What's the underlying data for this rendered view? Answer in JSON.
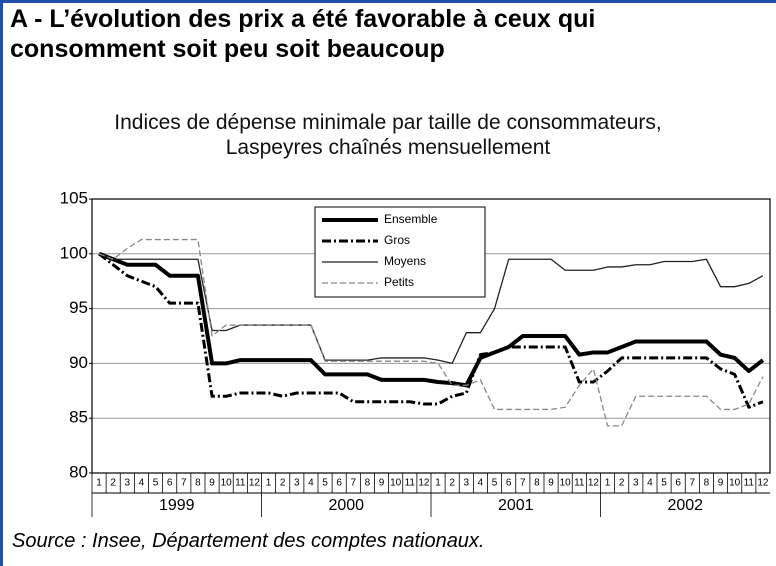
{
  "chart_data": {
    "type": "line",
    "title": [
      "A - L’évolution des prix a été favorable à ceux qui",
      "consomment soit peu soit beaucoup"
    ],
    "subtitle": [
      "Indices de dépense minimale par taille de consommateurs,",
      "Laspeyres chaînés mensuellement"
    ],
    "source": "Source : Insee, Département des comptes nationaux.",
    "categories": [
      "1",
      "2",
      "3",
      "4",
      "5",
      "6",
      "7",
      "8",
      "9",
      "10",
      "11",
      "12",
      "1",
      "2",
      "3",
      "4",
      "5",
      "6",
      "7",
      "8",
      "9",
      "10",
      "11",
      "12",
      "1",
      "2",
      "3",
      "4",
      "5",
      "6",
      "7",
      "8",
      "9",
      "10",
      "11",
      "12",
      "1",
      "2",
      "3",
      "4",
      "5",
      "6",
      "7",
      "8",
      "9",
      "10",
      "11",
      "12"
    ],
    "years": [
      "1999",
      "2000",
      "2001",
      "2002"
    ],
    "ylim": [
      80,
      105
    ],
    "yticks": [
      80,
      85,
      90,
      95,
      100,
      105
    ],
    "grid": true,
    "series": [
      {
        "name": "Ensemble",
        "color": "#000000",
        "width": 4,
        "dash": "none",
        "values": [
          100,
          99.5,
          99,
          99,
          99,
          98,
          98,
          98,
          90,
          90,
          90.3,
          90.3,
          90.3,
          90.3,
          90.3,
          90.3,
          89,
          89,
          89,
          89,
          88.5,
          88.5,
          88.5,
          88.5,
          88.3,
          88.2,
          88,
          90.5,
          91,
          91.5,
          92.5,
          92.5,
          92.5,
          92.5,
          90.8,
          91,
          91,
          91.5,
          92,
          92,
          92,
          92,
          92,
          92,
          90.8,
          90.5,
          89.3,
          90.3
        ]
      },
      {
        "name": "Gros",
        "color": "#000000",
        "width": 3,
        "dash": "9 3 2 3",
        "values": [
          100,
          99,
          98,
          97.5,
          97,
          95.5,
          95.5,
          95.5,
          87,
          87,
          87.3,
          87.3,
          87.3,
          87,
          87.3,
          87.3,
          87.3,
          87.3,
          86.5,
          86.5,
          86.5,
          86.5,
          86.5,
          86.3,
          86.3,
          87,
          87.3,
          90.8,
          91,
          91.5,
          91.5,
          91.5,
          91.5,
          91.5,
          88.3,
          88.3,
          89.3,
          90.5,
          90.5,
          90.5,
          90.5,
          90.5,
          90.5,
          90.5,
          89.5,
          89,
          86,
          86.5
        ]
      },
      {
        "name": "Moyens",
        "color": "#222222",
        "width": 1.3,
        "dash": "none",
        "values": [
          100,
          99.5,
          99.5,
          99.5,
          99.5,
          99.5,
          99.5,
          99.5,
          93,
          93,
          93.5,
          93.5,
          93.5,
          93.5,
          93.5,
          93.5,
          90.3,
          90.3,
          90.3,
          90.3,
          90.5,
          90.5,
          90.5,
          90.5,
          90.3,
          90,
          92.8,
          92.8,
          95,
          99.5,
          99.5,
          99.5,
          99.5,
          98.5,
          98.5,
          98.5,
          98.8,
          98.8,
          99,
          99,
          99.3,
          99.3,
          99.3,
          99.5,
          97,
          97,
          97.3,
          98
        ]
      },
      {
        "name": "Petits",
        "color": "#888888",
        "width": 1.3,
        "dash": "6 3",
        "values": [
          100,
          99.5,
          100.5,
          101.3,
          101.3,
          101.3,
          101.3,
          101.3,
          92.5,
          93.5,
          93.5,
          93.5,
          93.5,
          93.5,
          93.5,
          93.5,
          90.2,
          90.2,
          90.2,
          90.2,
          90.2,
          90.2,
          90.2,
          90.2,
          90,
          88,
          88,
          88.5,
          85.8,
          85.8,
          85.8,
          85.8,
          85.8,
          86,
          88,
          89.5,
          84.3,
          84.3,
          87,
          87,
          87,
          87,
          87,
          87,
          85.8,
          85.8,
          86.3,
          88.8
        ]
      }
    ]
  }
}
